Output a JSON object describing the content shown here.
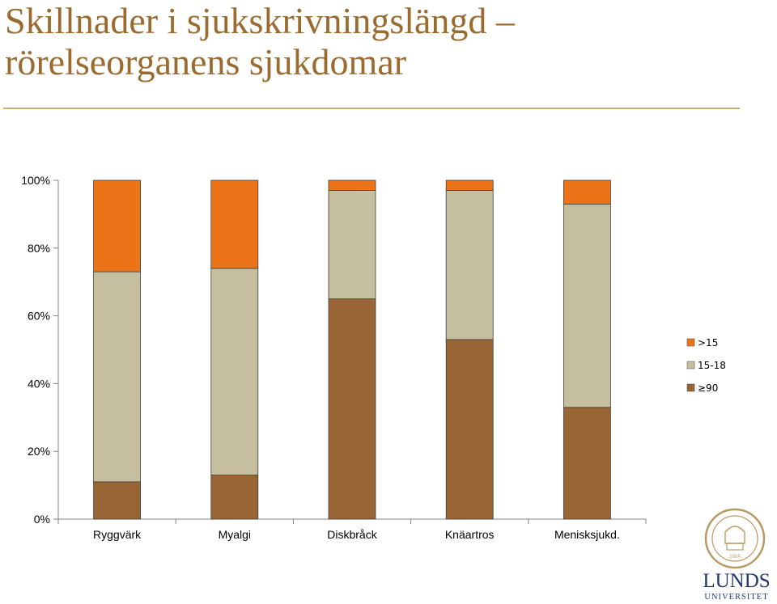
{
  "slide": {
    "title_line1": "Skillnader i sjukskrivningslängd –",
    "title_line2": "rörelseorganens sjukdomar"
  },
  "logo": {
    "name": "LUNDS",
    "subtitle": "UNIVERSITET",
    "year": "1666"
  },
  "chart_data": {
    "type": "bar",
    "stacked": true,
    "percent": true,
    "categories": [
      "Ryggvärk",
      "Myalgi",
      "Diskbråck",
      "Knäartros",
      "Menisksjukd."
    ],
    "series": [
      {
        "name": "≥90",
        "color": "#9a6534",
        "values": [
          11,
          13,
          65,
          53,
          33
        ]
      },
      {
        "name": "15-18",
        "color": "#c5bf9f",
        "values": [
          62,
          61,
          32,
          44,
          60
        ]
      },
      {
        "name": ">15",
        "color": "#ec7317",
        "values": [
          27,
          26,
          3,
          3,
          7
        ]
      }
    ],
    "yticks": [
      "0%",
      "20%",
      "40%",
      "60%",
      "80%",
      "100%"
    ],
    "ylim": [
      0,
      100
    ],
    "legend": ">15, 15-18, ≥90 stacked top-to-bottom on the right",
    "legend_order": [
      ">15",
      "15-18",
      "≥90"
    ],
    "grid": false
  }
}
